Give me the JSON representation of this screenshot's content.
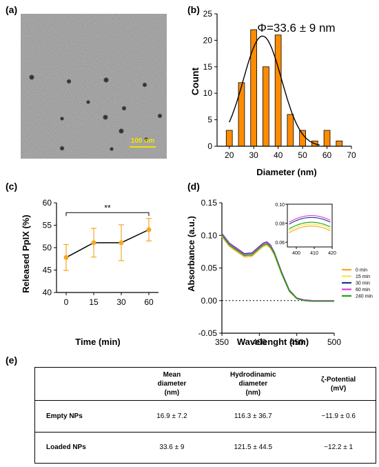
{
  "panels": {
    "a": {
      "label": "(a)",
      "scale_bar_label": "100 nm",
      "scale_bar_color": "#f5e400"
    },
    "b": {
      "label": "(b)",
      "chart_data": {
        "type": "bar",
        "annotation": "Φ=33.6 ± 9 nm",
        "xlabel": "Diameter (nm)",
        "ylabel": "Count",
        "xlim": [
          15,
          70
        ],
        "ylim": [
          0,
          25
        ],
        "xticks": [
          20,
          30,
          40,
          50,
          60,
          70
        ],
        "yticks": [
          0,
          5,
          10,
          15,
          20,
          25
        ],
        "bin_width": 2.5,
        "x": [
          20,
          25,
          30,
          35,
          40,
          45,
          50,
          55,
          60,
          65
        ],
        "values": [
          3,
          12,
          22,
          15,
          21,
          6,
          3,
          1,
          3,
          1
        ],
        "bar_color": "#ff8c00",
        "fit": {
          "type": "gaussian",
          "mean": 33.6,
          "sd": 7.8,
          "amplitude": 20.8
        }
      }
    },
    "c": {
      "label": "(c)",
      "chart_data": {
        "type": "line",
        "xlabel": "Time (min)",
        "ylabel": "Released PpIX (%)",
        "categories": [
          "0",
          "15",
          "30",
          "60"
        ],
        "ylim": [
          40,
          60
        ],
        "yticks": [
          40,
          45,
          50,
          55,
          60
        ],
        "values": [
          47.8,
          51.1,
          51.1,
          54.0
        ],
        "error": [
          2.9,
          3.2,
          4.0,
          2.5
        ],
        "marker_color": "#f5a623",
        "significance": {
          "label": "**",
          "from": "0",
          "to": "60"
        }
      }
    },
    "d": {
      "label": "(d)",
      "chart_data": {
        "type": "line",
        "xlabel": "Wavelenght (nm)",
        "ylabel": "Absorbance (a.u.)",
        "xlim": [
          350,
          500
        ],
        "ylim": [
          -0.05,
          0.15
        ],
        "xticks": [
          350,
          400,
          450,
          500
        ],
        "yticks": [
          -0.05,
          0.0,
          0.05,
          0.1,
          0.15
        ],
        "ytick_labels": [
          "-0.05",
          "0.00",
          "0.05",
          "0.10",
          "0.15"
        ],
        "x": [
          350,
          360,
          370,
          380,
          390,
          400,
          405,
          410,
          415,
          420,
          430,
          440,
          450,
          460,
          470,
          480,
          490,
          500
        ],
        "series": [
          {
            "name": "0 min",
            "color": "#f5a623",
            "values": [
              0.098,
              0.083,
              0.075,
              0.067,
              0.068,
              0.078,
              0.083,
              0.085,
              0.08,
              0.07,
              0.04,
              0.014,
              0.003,
              0.0,
              -0.001,
              -0.001,
              -0.001,
              -0.001
            ]
          },
          {
            "name": "15 min",
            "color": "#f2ea3a",
            "values": [
              0.099,
              0.084,
              0.076,
              0.068,
              0.069,
              0.079,
              0.084,
              0.086,
              0.081,
              0.071,
              0.041,
              0.015,
              0.004,
              0.001,
              0.0,
              0.0,
              0.0,
              0.0
            ]
          },
          {
            "name": "30 min",
            "color": "#1f2f8f",
            "values": [
              0.103,
              0.088,
              0.08,
              0.072,
              0.073,
              0.083,
              0.088,
              0.09,
              0.085,
              0.074,
              0.043,
              0.016,
              0.004,
              0.001,
              0.0,
              0.0,
              0.0,
              0.0
            ]
          },
          {
            "name": "60 min",
            "color": "#d63bd6",
            "values": [
              0.102,
              0.087,
              0.079,
              0.071,
              0.072,
              0.082,
              0.087,
              0.089,
              0.084,
              0.073,
              0.042,
              0.015,
              0.004,
              0.001,
              0.0,
              0.0,
              0.0,
              0.0
            ]
          },
          {
            "name": "240 min",
            "color": "#1aa31a",
            "values": [
              0.1,
              0.085,
              0.077,
              0.069,
              0.07,
              0.08,
              0.085,
              0.087,
              0.082,
              0.072,
              0.041,
              0.015,
              0.003,
              0.0,
              -0.001,
              -0.001,
              -0.001,
              -0.001
            ]
          }
        ],
        "inset": {
          "xlim": [
            395,
            420
          ],
          "ylim": [
            0.055,
            0.1
          ],
          "xticks": [
            400,
            410,
            420
          ],
          "yticks": [
            0.06,
            0.08,
            0.1
          ],
          "ytick_labels": [
            "0.06",
            "0.08",
            "0.10"
          ]
        }
      }
    },
    "e": {
      "label": "(e)",
      "headers": [
        "",
        "Mean\ndiameter\n(nm)",
        "Hydrodinamic\ndiameter\n(nm)",
        "ζ-Potential\n(mV)"
      ],
      "rows": [
        [
          "Empty NPs",
          "16.9 ± 7.2",
          "116.3 ± 36.7",
          "−11.9 ± 0.6"
        ],
        [
          "Loaded NPs",
          "33.6 ± 9",
          "121.5 ± 44.5",
          "−12.2 ± 1"
        ]
      ]
    }
  }
}
